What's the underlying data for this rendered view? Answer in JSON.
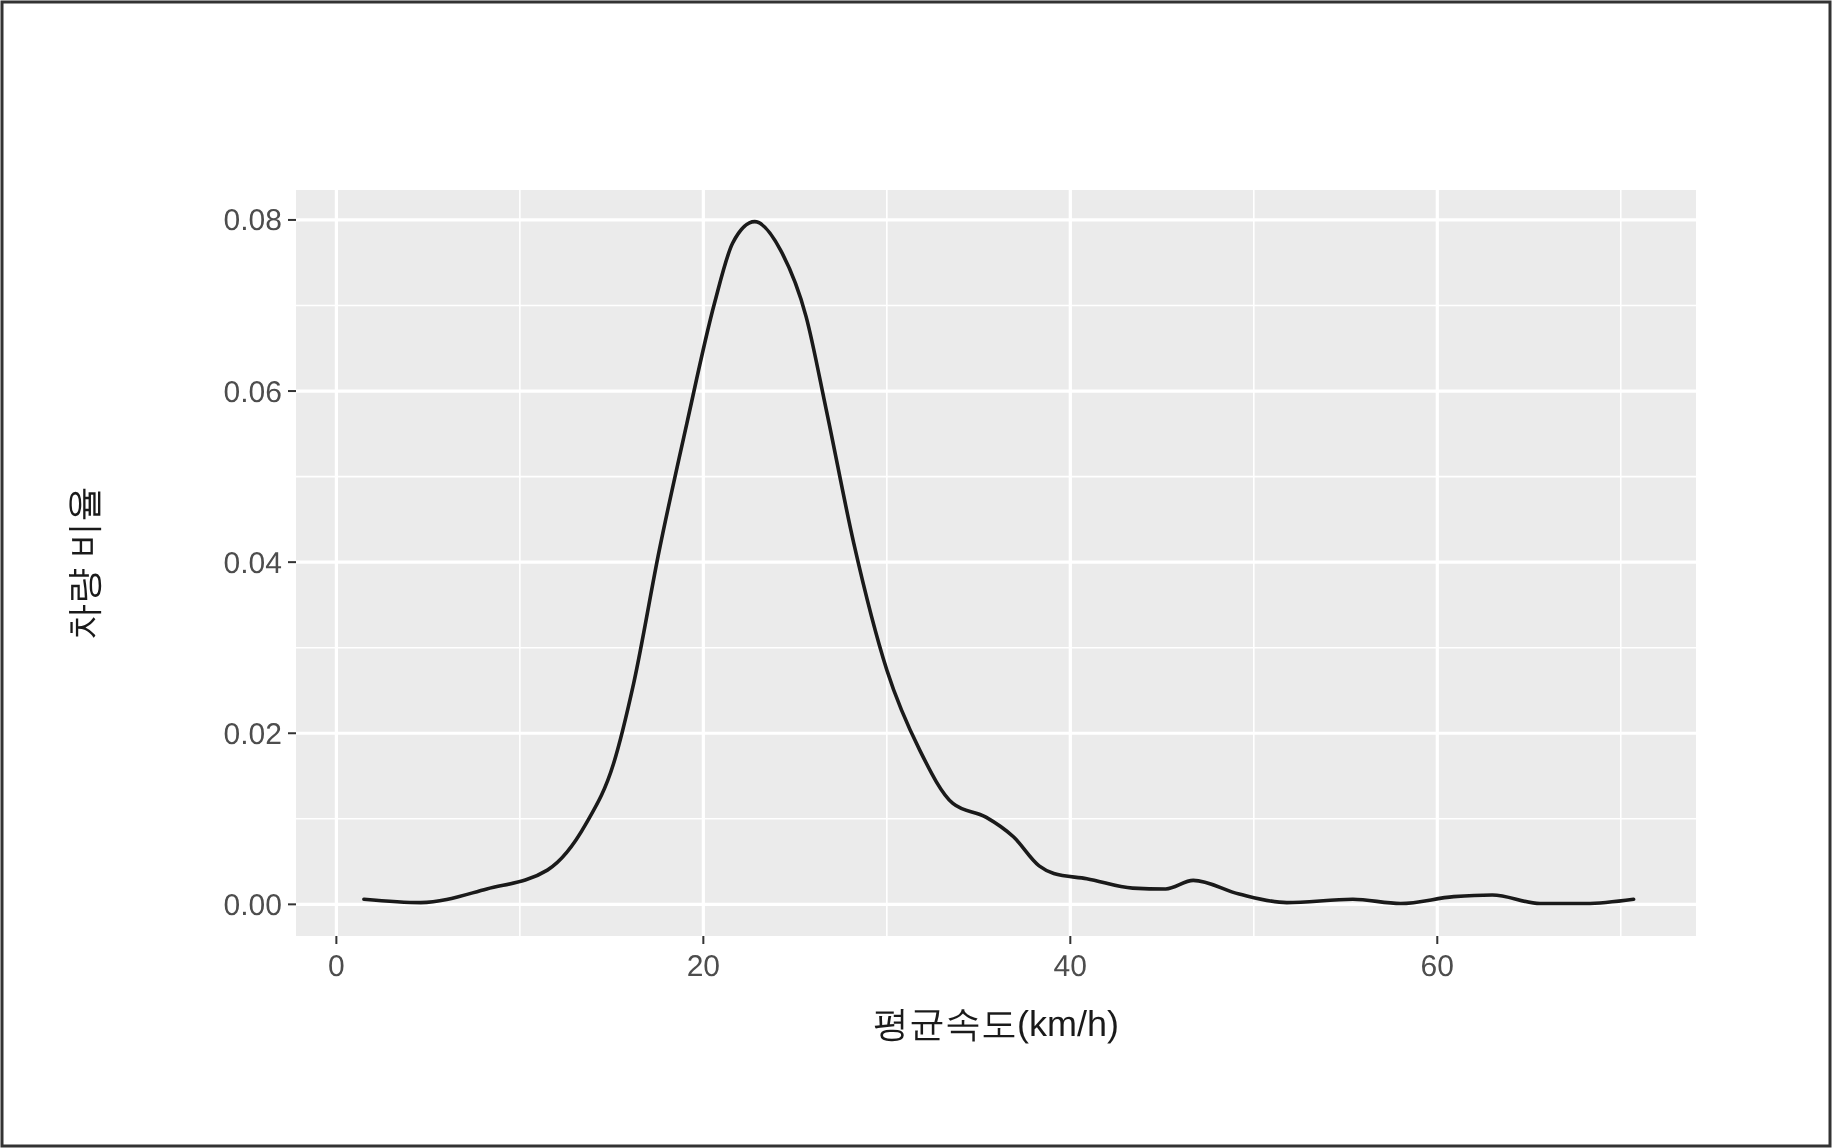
{
  "chart_data": {
    "type": "line",
    "xlabel": "평균속도(km/h)",
    "ylabel": "차량 비율",
    "xlim": [
      -2.2,
      74.1
    ],
    "ylim": [
      -0.0037,
      0.0835
    ],
    "xticks": [
      0,
      20,
      40,
      60
    ],
    "yticks": [
      {
        "value": 0,
        "label": "0.00"
      },
      {
        "value": 0.02,
        "label": "0.02"
      },
      {
        "value": 0.04,
        "label": "0.04"
      },
      {
        "value": 0.06,
        "label": "0.06"
      },
      {
        "value": 0.08,
        "label": "0.08"
      }
    ],
    "grid": true,
    "marker": "none",
    "line_style": "solid",
    "series": [
      {
        "color": "#1a1a1a",
        "x": [
          1.5,
          4.6,
          8.2,
          11.5,
          13.6,
          15.1,
          16.2,
          17.6,
          19.1,
          20.6,
          21.6,
          22.8,
          24.2,
          25.6,
          26.7,
          28.2,
          30.0,
          31.8,
          33.6,
          35.4,
          36.9,
          38.3,
          39.1,
          40.9,
          43.4,
          45.2,
          46.7,
          49.2,
          51.8,
          55.4,
          58.0,
          60.9,
          63.0,
          65.6,
          68.1,
          70.7
        ],
        "values": [
          0.0006,
          0.0002,
          0.0018,
          0.004,
          0.0094,
          0.0164,
          0.0258,
          0.0414,
          0.0562,
          0.0702,
          0.0773,
          0.0798,
          0.0765,
          0.0687,
          0.0578,
          0.0422,
          0.0274,
          0.018,
          0.0118,
          0.0102,
          0.0079,
          0.0045,
          0.0036,
          0.003,
          0.0019,
          0.0018,
          0.0028,
          0.0012,
          0.0002,
          0.0006,
          0.0001,
          0.0009,
          0.0011,
          0.0001,
          0.0001,
          0.0006
        ]
      }
    ]
  }
}
